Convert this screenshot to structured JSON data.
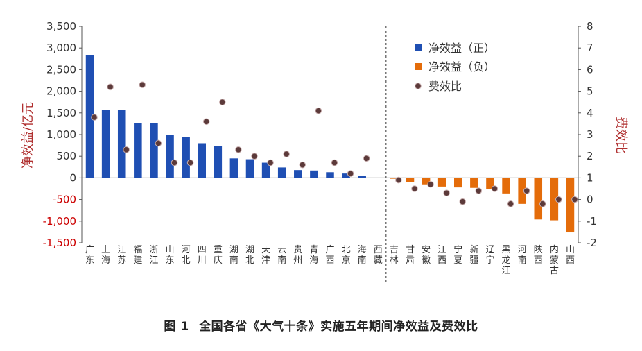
{
  "caption": {
    "figure_label": "图 1",
    "title": "全国各省《大气十条》实施五年期间净效益及费效比"
  },
  "colors": {
    "positive": "#1F4FB3",
    "negative": "#E46C0A",
    "ratio_dot": "#5C3A3A",
    "left_axis_red": "#CC0000",
    "axis_text": "#333333"
  },
  "chart_data": {
    "type": "bar",
    "categories": [
      "广东",
      "上海",
      "江苏",
      "福建",
      "浙江",
      "山东",
      "河北",
      "四川",
      "重庆",
      "湖南",
      "湖北",
      "天津",
      "云南",
      "贵州",
      "青海",
      "广西",
      "北京",
      "海南",
      "西藏",
      "吉林",
      "甘肃",
      "安徽",
      "江西",
      "宁夏",
      "新疆",
      "辽宁",
      "黑龙江",
      "河南",
      "陕西",
      "内蒙古",
      "山西"
    ],
    "series": [
      {
        "name": "净效益（正）",
        "axis": "left",
        "values": [
          2830,
          1570,
          1570,
          1270,
          1270,
          990,
          940,
          800,
          730,
          450,
          430,
          350,
          240,
          180,
          170,
          130,
          100,
          50,
          0,
          null,
          null,
          null,
          null,
          null,
          null,
          null,
          null,
          null,
          null,
          null,
          null
        ]
      },
      {
        "name": "净效益（负）",
        "axis": "left",
        "values": [
          null,
          null,
          null,
          null,
          null,
          null,
          null,
          null,
          null,
          null,
          null,
          null,
          null,
          null,
          null,
          null,
          null,
          null,
          null,
          -20,
          -100,
          -150,
          -200,
          -220,
          -230,
          -250,
          -360,
          -600,
          -960,
          -980,
          -1260
        ]
      },
      {
        "name": "费效比",
        "axis": "right",
        "type": "scatter",
        "values": [
          3.8,
          5.2,
          2.3,
          5.3,
          2.6,
          1.7,
          1.7,
          3.6,
          4.5,
          2.3,
          2.0,
          1.7,
          2.1,
          1.6,
          4.1,
          1.7,
          1.2,
          1.9,
          null,
          0.9,
          0.5,
          0.7,
          0.3,
          -0.1,
          0.4,
          0.5,
          -0.2,
          0.4,
          -0.2,
          0.0,
          0.0
        ]
      }
    ],
    "ylabel": "净效益/亿元",
    "ylabel_right": "费效比",
    "ylim": [
      -1500,
      3500
    ],
    "yticks": [
      "-1,500",
      "-1,000",
      "-500",
      "0",
      "500",
      "1,000",
      "1,500",
      "2,000",
      "2,500",
      "3,000",
      "3,500"
    ],
    "ylim_right": [
      -2,
      8
    ],
    "yticks_right": [
      "-2",
      "-1",
      "0",
      "1",
      "2",
      "3",
      "4",
      "5",
      "6",
      "7",
      "8"
    ],
    "divider_after": "西藏",
    "legend_position": "top-right"
  }
}
